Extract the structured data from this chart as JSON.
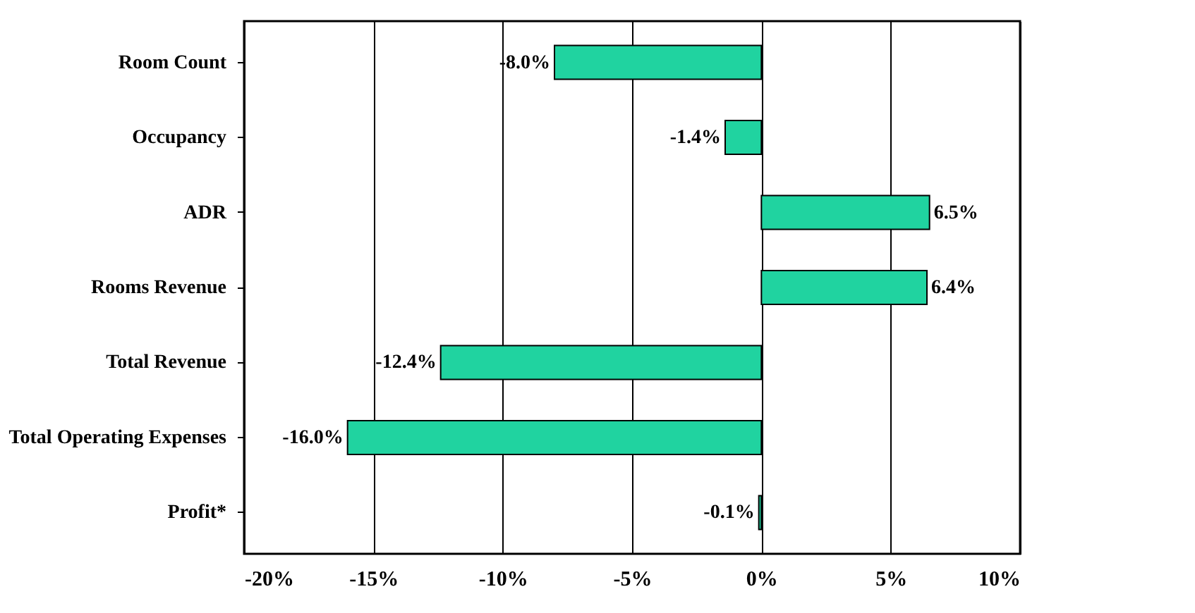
{
  "chart_data": {
    "type": "bar",
    "orientation": "horizontal",
    "categories": [
      "Room Count",
      "Occupancy",
      "ADR",
      "Rooms Revenue",
      "Total Revenue",
      "Total Operating Expenses",
      "Profit*"
    ],
    "values": [
      -8.0,
      -1.4,
      6.5,
      6.4,
      -12.4,
      -16.0,
      -0.1
    ],
    "value_labels": [
      "-8.0%",
      "-1.4%",
      "6.5%",
      "6.4%",
      "-12.4%",
      "-16.0%",
      "-0.1%"
    ],
    "color": "#20d3a0",
    "xlim": [
      -20,
      10
    ],
    "xticks": [
      {
        "value": -20,
        "label": "-20%"
      },
      {
        "value": -15,
        "label": "-15%"
      },
      {
        "value": -10,
        "label": "-10%"
      },
      {
        "value": -5,
        "label": "-5%"
      },
      {
        "value": 0,
        "label": "0%"
      },
      {
        "value": 5,
        "label": "5%"
      },
      {
        "value": 10,
        "label": "10%"
      }
    ],
    "grid": "x"
  }
}
